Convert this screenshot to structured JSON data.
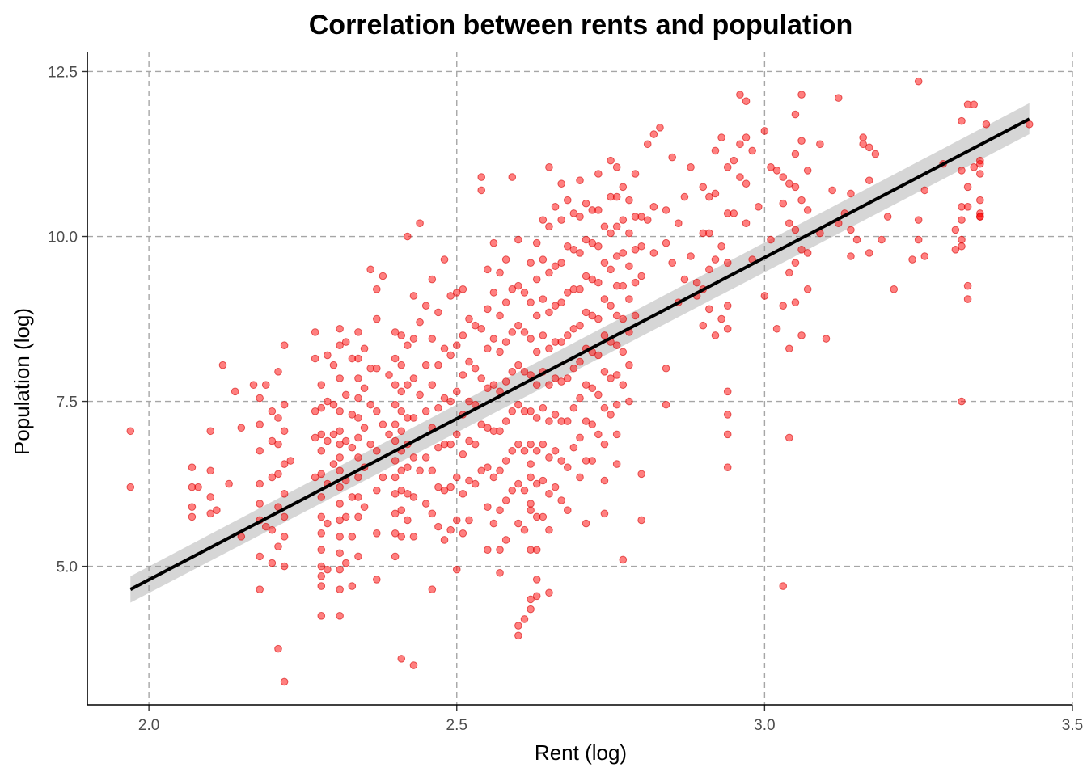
{
  "chart_data": {
    "type": "scatter",
    "title": "Correlation between rents and population",
    "xlabel": "Rent (log)",
    "ylabel": "Population (log)",
    "xlim": [
      1.9,
      3.5
    ],
    "ylim": [
      2.9,
      12.8
    ],
    "xticks": [
      2.0,
      2.5,
      3.0,
      3.5
    ],
    "xtick_labels": [
      "2.0",
      "2.5",
      "3.0",
      "3.5"
    ],
    "yticks": [
      5.0,
      7.5,
      10.0,
      12.5
    ],
    "ytick_labels": [
      "5.0",
      "7.5",
      "10.0",
      "12.5"
    ],
    "grid": true,
    "legend": "none",
    "point_color": "#ff0000",
    "fit_line_color": "#000000",
    "confidence_band_color": "#999999",
    "fit_line": {
      "x": [
        1.97,
        3.43
      ],
      "y": [
        4.65,
        11.78
      ]
    },
    "confidence_band": {
      "x": [
        1.97,
        3.43
      ],
      "lower": [
        4.45,
        11.55
      ],
      "upper": [
        4.85,
        12.02
      ]
    },
    "points": {
      "x": [
        1.97,
        1.97,
        2.07,
        2.07,
        2.07,
        2.07,
        2.08,
        2.1,
        2.1,
        2.1,
        2.1,
        2.11,
        2.12,
        2.13,
        2.14,
        2.15,
        2.15,
        2.17,
        2.18,
        2.18,
        2.18,
        2.18,
        2.18,
        2.18,
        2.18,
        2.18,
        2.19,
        2.19,
        2.2,
        2.2,
        2.2,
        2.2,
        2.2,
        2.21,
        2.21,
        2.21,
        2.21,
        2.21,
        2.21,
        2.21,
        2.22,
        2.22,
        2.22,
        2.22,
        2.22,
        2.22,
        2.22,
        2.22,
        2.22,
        2.23,
        2.27,
        2.27,
        2.27,
        2.27,
        2.27,
        2.28,
        2.28,
        2.28,
        2.28,
        2.28,
        2.28,
        2.28,
        2.28,
        2.28,
        2.28,
        2.28,
        2.28,
        2.28,
        2.29,
        2.29,
        2.29,
        2.29,
        2.29,
        2.29,
        2.3,
        2.3,
        2.3,
        2.3,
        2.31,
        2.31,
        2.31,
        2.31,
        2.31,
        2.31,
        2.31,
        2.31,
        2.31,
        2.31,
        2.31,
        2.31,
        2.31,
        2.31,
        2.31,
        2.31,
        2.32,
        2.32,
        2.32,
        2.32,
        2.32,
        2.32,
        2.33,
        2.33,
        2.33,
        2.33,
        2.33,
        2.33,
        2.34,
        2.34,
        2.34,
        2.34,
        2.34,
        2.34,
        2.34,
        2.34,
        2.34,
        2.34,
        2.34,
        2.35,
        2.35,
        2.35,
        2.35,
        2.35,
        2.36,
        2.36,
        2.36,
        2.36,
        2.37,
        2.37,
        2.37,
        2.37,
        2.37,
        2.37,
        2.37,
        2.37,
        2.38,
        2.38,
        2.38,
        2.39,
        2.39,
        2.4,
        2.4,
        2.4,
        2.4,
        2.4,
        2.4,
        2.4,
        2.4,
        2.4,
        2.4,
        2.4,
        2.4,
        2.41,
        2.41,
        2.41,
        2.41,
        2.41,
        2.41,
        2.41,
        2.41,
        2.41,
        2.41,
        2.41,
        2.42,
        2.42,
        2.42,
        2.42,
        2.42,
        2.42,
        2.42,
        2.42,
        2.43,
        2.43,
        2.43,
        2.43,
        2.43,
        2.43,
        2.43,
        2.43,
        2.44,
        2.44,
        2.44,
        2.44,
        2.45,
        2.45,
        2.45,
        2.45,
        2.45,
        2.46,
        2.46,
        2.46,
        2.46,
        2.46,
        2.46,
        2.46,
        2.47,
        2.47,
        2.47,
        2.47,
        2.47,
        2.47,
        2.48,
        2.48,
        2.48,
        2.48,
        2.48,
        2.48,
        2.49,
        2.49,
        2.49,
        2.49,
        2.49,
        2.49,
        2.5,
        2.5,
        2.5,
        2.5,
        2.5,
        2.5,
        2.5,
        2.51,
        2.51,
        2.51,
        2.51,
        2.51,
        2.51,
        2.51,
        2.52,
        2.52,
        2.52,
        2.52,
        2.52,
        2.52,
        2.53,
        2.53,
        2.53,
        2.53,
        2.53,
        2.54,
        2.54,
        2.54,
        2.54,
        2.54,
        2.54,
        2.55,
        2.55,
        2.55,
        2.55,
        2.55,
        2.55,
        2.55,
        2.55,
        2.56,
        2.56,
        2.56,
        2.56,
        2.56,
        2.56,
        2.56,
        2.57,
        2.57,
        2.57,
        2.57,
        2.57,
        2.57,
        2.57,
        2.57,
        2.57,
        2.58,
        2.58,
        2.58,
        2.58,
        2.58,
        2.58,
        2.58,
        2.58,
        2.59,
        2.59,
        2.59,
        2.59,
        2.59,
        2.59,
        2.59,
        2.6,
        2.6,
        2.6,
        2.6,
        2.6,
        2.6,
        2.6,
        2.6,
        2.6,
        2.6,
        2.61,
        2.61,
        2.61,
        2.61,
        2.61,
        2.61,
        2.61,
        2.61,
        2.62,
        2.62,
        2.62,
        2.62,
        2.62,
        2.62,
        2.62,
        2.62,
        2.62,
        2.62,
        2.62,
        2.62,
        2.62,
        2.63,
        2.63,
        2.63,
        2.63,
        2.63,
        2.63,
        2.63,
        2.63,
        2.63,
        2.63,
        2.63,
        2.63,
        2.64,
        2.64,
        2.64,
        2.64,
        2.64,
        2.64,
        2.64,
        2.64,
        2.64,
        2.65,
        2.65,
        2.65,
        2.65,
        2.65,
        2.65,
        2.65,
        2.65,
        2.65,
        2.65,
        2.65,
        2.66,
        2.66,
        2.66,
        2.66,
        2.66,
        2.66,
        2.66,
        2.66,
        2.67,
        2.67,
        2.67,
        2.67,
        2.67,
        2.67,
        2.67,
        2.67,
        2.67,
        2.68,
        2.68,
        2.68,
        2.68,
        2.68,
        2.68,
        2.68,
        2.68,
        2.69,
        2.69,
        2.69,
        2.69,
        2.69,
        2.69,
        2.69,
        2.7,
        2.7,
        2.7,
        2.7,
        2.7,
        2.7,
        2.7,
        2.7,
        2.7,
        2.71,
        2.71,
        2.71,
        2.71,
        2.71,
        2.71,
        2.71,
        2.71,
        2.71,
        2.72,
        2.72,
        2.72,
        2.72,
        2.72,
        2.72,
        2.72,
        2.72,
        2.73,
        2.73,
        2.73,
        2.73,
        2.73,
        2.73,
        2.73,
        2.73,
        2.74,
        2.74,
        2.74,
        2.74,
        2.74,
        2.74,
        2.74,
        2.74,
        2.74,
        2.75,
        2.75,
        2.75,
        2.75,
        2.75,
        2.75,
        2.75,
        2.75,
        2.76,
        2.76,
        2.76,
        2.76,
        2.76,
        2.76,
        2.76,
        2.76,
        2.76,
        2.76,
        2.76,
        2.77,
        2.77,
        2.77,
        2.77,
        2.77,
        2.77,
        2.77,
        2.77,
        2.78,
        2.78,
        2.78,
        2.78,
        2.78,
        2.78,
        2.78,
        2.79,
        2.79,
        2.79,
        2.79,
        2.79,
        2.8,
        2.8,
        2.8,
        2.8,
        2.8,
        2.81,
        2.81,
        2.82,
        2.82,
        2.82,
        2.83,
        2.84,
        2.84,
        2.84,
        2.84,
        2.85,
        2.85,
        2.86,
        2.86,
        2.87,
        2.87,
        2.88,
        2.88,
        2.89,
        2.89,
        2.9,
        2.9,
        2.9,
        2.9,
        2.91,
        2.91,
        2.91,
        2.91,
        2.92,
        2.92,
        2.92,
        2.92,
        2.93,
        2.93,
        2.93,
        2.94,
        2.94,
        2.94,
        2.94,
        2.94,
        2.94,
        2.94,
        2.94,
        2.94,
        2.95,
        2.95,
        2.96,
        2.96,
        2.96,
        2.97,
        2.97,
        2.97,
        2.97,
        2.98,
        2.98,
        2.99,
        3.0,
        3.0,
        3.01,
        3.01,
        3.02,
        3.02,
        3.03,
        3.03,
        3.03,
        3.03,
        3.04,
        3.04,
        3.04,
        3.04,
        3.04,
        3.05,
        3.05,
        3.05,
        3.05,
        3.05,
        3.05,
        3.06,
        3.06,
        3.06,
        3.06,
        3.06,
        3.07,
        3.07,
        3.07,
        3.07,
        3.09,
        3.09,
        3.1,
        3.11,
        3.12,
        3.12,
        3.13,
        3.14,
        3.14,
        3.14,
        3.15,
        3.16,
        3.16,
        3.17,
        3.17,
        3.17,
        3.18,
        3.19,
        3.2,
        3.21,
        3.24,
        3.25,
        3.25,
        3.25,
        3.26,
        3.26,
        3.29,
        3.31,
        3.31,
        3.32,
        3.32,
        3.32,
        3.32,
        3.32,
        3.32,
        3.32,
        3.33,
        3.33,
        3.33,
        3.33,
        3.33,
        3.34,
        3.34,
        3.35,
        3.35,
        3.35,
        3.35,
        3.35,
        3.35,
        3.35,
        3.36,
        3.43
      ],
      "y": [
        7.05,
        6.2,
        6.5,
        6.2,
        5.9,
        5.75,
        6.2,
        7.05,
        6.45,
        6.05,
        5.8,
        5.85,
        8.05,
        6.25,
        7.65,
        7.1,
        5.45,
        7.75,
        7.55,
        7.15,
        6.75,
        6.25,
        5.95,
        5.7,
        5.15,
        4.65,
        5.6,
        7.75,
        7.35,
        6.9,
        6.35,
        5.55,
        5.05,
        7.95,
        7.25,
        6.85,
        6.4,
        5.9,
        5.3,
        3.75,
        8.35,
        7.45,
        7.05,
        6.55,
        6.1,
        5.75,
        5.45,
        5.0,
        3.25,
        6.6,
        8.55,
        8.15,
        7.35,
        6.95,
        6.35,
        7.75,
        7.4,
        7.0,
        6.75,
        6.4,
        6.05,
        5.75,
        5.5,
        5.25,
        5.0,
        4.85,
        4.7,
        4.25,
        8.2,
        7.5,
        6.9,
        6.25,
        5.65,
        4.95,
        8.05,
        7.45,
        7.0,
        6.55,
        8.6,
        8.35,
        7.85,
        7.35,
        7.05,
        6.85,
        6.65,
        6.45,
        6.2,
        5.95,
        5.7,
        5.45,
        5.2,
        4.95,
        4.65,
        4.25,
        8.4,
        7.6,
        6.9,
        6.3,
        5.75,
        5.05,
        8.15,
        7.3,
        6.8,
        6.05,
        5.45,
        4.7,
        8.55,
        8.15,
        7.85,
        7.55,
        7.25,
        6.95,
        6.65,
        6.35,
        6.05,
        5.75,
        5.15,
        8.3,
        7.7,
        7.1,
        6.5,
        5.9,
        9.5,
        8.0,
        7.45,
        6.85,
        9.2,
        8.75,
        8.0,
        7.35,
        6.75,
        6.15,
        5.5,
        4.8,
        9.4,
        7.15,
        6.35,
        7.9,
        7.0,
        8.55,
        8.15,
        7.75,
        7.45,
        7.15,
        6.9,
        6.6,
        6.35,
        6.1,
        5.8,
        5.5,
        5.15,
        8.5,
        8.05,
        7.65,
        7.35,
        7.05,
        6.75,
        6.45,
        6.15,
        5.85,
        5.45,
        3.6,
        10.0,
        8.35,
        7.75,
        7.25,
        6.85,
        6.5,
        6.1,
        5.7,
        9.1,
        8.45,
        7.85,
        7.25,
        6.65,
        6.05,
        5.45,
        3.5,
        10.2,
        8.7,
        7.6,
        6.45,
        8.95,
        8.05,
        7.35,
        6.65,
        5.95,
        9.35,
        8.45,
        7.75,
        7.1,
        6.45,
        5.8,
        4.65,
        8.85,
        8.05,
        7.4,
        6.8,
        6.2,
        5.6,
        9.65,
        8.3,
        7.55,
        6.85,
        6.15,
        5.4,
        9.1,
        8.2,
        7.5,
        6.85,
        6.2,
        5.55,
        9.15,
        8.35,
        7.65,
        7.0,
        6.35,
        5.7,
        4.95,
        9.2,
        8.5,
        7.9,
        7.3,
        6.7,
        6.1,
        5.5,
        8.75,
        8.1,
        7.5,
        6.9,
        6.3,
        5.7,
        8.65,
        8.0,
        7.45,
        6.85,
        6.25,
        10.9,
        10.7,
        8.6,
        7.85,
        7.15,
        6.45,
        9.5,
        8.9,
        8.3,
        7.7,
        7.1,
        6.5,
        5.9,
        5.25,
        9.9,
        9.15,
        8.45,
        7.75,
        7.05,
        6.35,
        5.65,
        9.45,
        8.8,
        8.25,
        7.65,
        7.05,
        6.45,
        5.85,
        5.25,
        4.9,
        9.65,
        9.0,
        8.4,
        7.8,
        7.2,
        6.6,
        6.0,
        5.4,
        10.9,
        9.2,
        8.55,
        7.95,
        7.35,
        6.75,
        6.15,
        9.95,
        9.25,
        8.65,
        8.05,
        7.45,
        6.85,
        6.25,
        5.65,
        4.1,
        3.95,
        9.15,
        8.55,
        7.95,
        7.35,
        6.75,
        6.15,
        5.55,
        4.2,
        9.6,
        9.0,
        8.45,
        7.9,
        7.35,
        6.85,
        6.35,
        5.85,
        5.25,
        4.35,
        4.5,
        5.95,
        6.55,
        9.9,
        9.35,
        8.8,
        8.25,
        7.75,
        7.25,
        6.75,
        6.25,
        5.75,
        5.25,
        4.8,
        4.55,
        10.25,
        9.65,
        9.05,
        8.5,
        7.95,
        7.4,
        6.85,
        6.3,
        5.75,
        11.05,
        10.15,
        9.45,
        8.85,
        8.3,
        7.75,
        7.2,
        6.65,
        6.1,
        5.55,
        4.6,
        10.45,
        9.55,
        8.95,
        8.4,
        7.85,
        7.3,
        6.75,
        6.2,
        10.8,
        10.25,
        9.6,
        9.0,
        8.4,
        7.8,
        7.2,
        6.6,
        6.0,
        10.55,
        9.85,
        9.15,
        8.5,
        7.85,
        7.2,
        6.5,
        5.85,
        10.35,
        9.8,
        9.2,
        8.6,
        8.0,
        7.4,
        6.8,
        10.85,
        10.3,
        9.75,
        9.2,
        8.65,
        8.1,
        7.55,
        6.95,
        6.35,
        10.5,
        9.95,
        9.4,
        8.85,
        8.3,
        7.75,
        7.2,
        6.6,
        5.65,
        10.4,
        9.9,
        9.35,
        8.8,
        8.25,
        7.7,
        7.15,
        6.6,
        10.95,
        10.4,
        9.85,
        9.3,
        8.75,
        8.2,
        7.6,
        7.0,
        10.15,
        9.6,
        9.05,
        8.5,
        7.95,
        7.4,
        6.85,
        6.3,
        5.8,
        11.15,
        10.6,
        10.05,
        9.5,
        8.95,
        8.4,
        7.85,
        7.3,
        11.05,
        10.6,
        10.15,
        9.7,
        9.25,
        8.8,
        8.35,
        7.9,
        7.45,
        7.0,
        6.55,
        10.75,
        10.25,
        9.75,
        9.25,
        8.75,
        8.25,
        7.75,
        5.1,
        10.55,
        10.05,
        9.55,
        9.05,
        8.55,
        8.05,
        7.5,
        10.95,
        10.3,
        9.8,
        9.3,
        8.8,
        10.3,
        9.85,
        9.4,
        6.4,
        5.7,
        11.4,
        10.25,
        11.55,
        10.45,
        9.75,
        11.65,
        10.4,
        9.9,
        8.0,
        7.45,
        11.2,
        9.6,
        10.2,
        9.0,
        10.6,
        9.35,
        11.05,
        9.7,
        9.3,
        9.1,
        10.75,
        10.05,
        9.2,
        8.65,
        10.6,
        10.05,
        9.5,
        8.9,
        11.3,
        10.65,
        9.65,
        8.5,
        11.5,
        9.85,
        8.75,
        11.05,
        10.35,
        9.6,
        8.95,
        8.6,
        7.65,
        7.3,
        7.0,
        6.5,
        11.15,
        10.35,
        12.15,
        11.4,
        10.9,
        12.05,
        11.5,
        10.8,
        10.2,
        11.3,
        9.65,
        10.45,
        11.6,
        9.1,
        11.05,
        9.95,
        11.0,
        8.6,
        10.9,
        10.5,
        8.95,
        4.7,
        10.8,
        10.2,
        9.45,
        8.3,
        6.95,
        11.85,
        11.25,
        10.75,
        10.1,
        9.6,
        9.0,
        12.15,
        11.45,
        10.55,
        9.8,
        8.5,
        11.0,
        10.4,
        9.75,
        9.2,
        11.4,
        10.05,
        8.45,
        10.7,
        12.1,
        10.2,
        10.35,
        9.7,
        10.1,
        10.65,
        9.95,
        11.5,
        11.4,
        11.35,
        10.85,
        9.75,
        11.25,
        9.95,
        10.3,
        9.2,
        9.65,
        12.35,
        10.25,
        9.95,
        10.7,
        9.7,
        11.1,
        9.8,
        10.1,
        10.45,
        9.95,
        11.75,
        11.0,
        10.25,
        9.85,
        7.5,
        12.0,
        9.25,
        9.05,
        10.75,
        10.45,
        12.0,
        11.05,
        11.15,
        10.95,
        10.55,
        10.35,
        10.3,
        10.3,
        11.1,
        11.7,
        11.7
      ]
    }
  }
}
